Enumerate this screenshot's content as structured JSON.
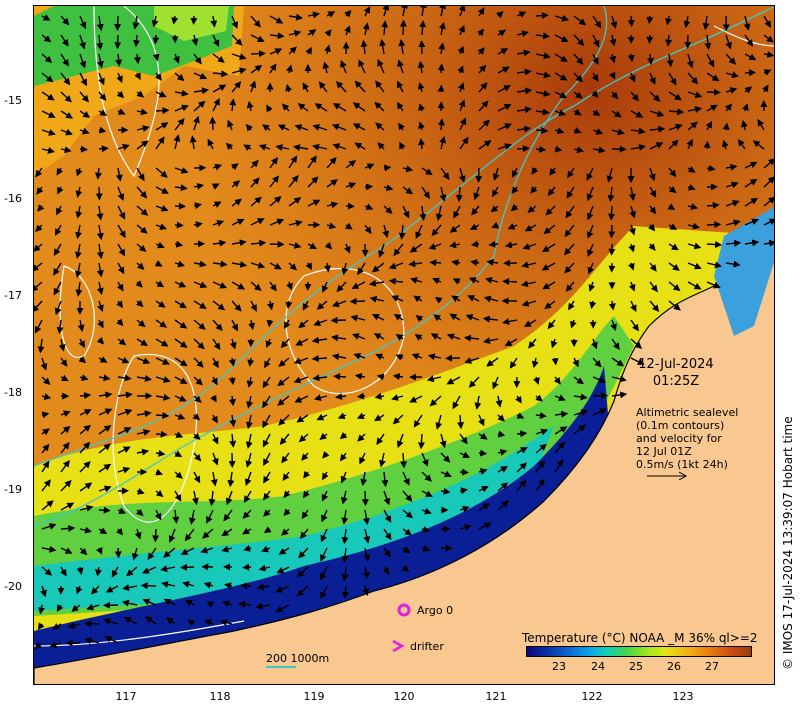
{
  "map": {
    "y_axis_labels": [
      "-15",
      "-16",
      "-17",
      "-18",
      "-19",
      "-20"
    ],
    "x_axis_labels": [
      "117",
      "118",
      "119",
      "120",
      "121",
      "122",
      "123"
    ],
    "date": "12-Jul-2024",
    "time": "01:25Z",
    "altimetry_note": [
      "Altimetric sealevel",
      "(0.1m contours)",
      "and velocity for",
      "12 Jul 01Z",
      "0.5m/s (1kt 24h)"
    ],
    "credit": "© IMOS 17-Jul-2024 13:39:07 Hobart time",
    "legend": {
      "argo": "Argo 0",
      "drifter": "drifter",
      "bathymetry": "200  1000m"
    },
    "colorbar": {
      "title": "Temperature (°C) NOAA _M 36% ql>=2",
      "ticks": [
        "23",
        "24",
        "25",
        "26",
        "27"
      ]
    },
    "colors": {
      "land": "#f9c890",
      "coast": "#000000",
      "bathy": "#40c8c8",
      "argo": "#e020e0",
      "drifter": "#e020e0",
      "contour": "#ffffff"
    }
  }
}
